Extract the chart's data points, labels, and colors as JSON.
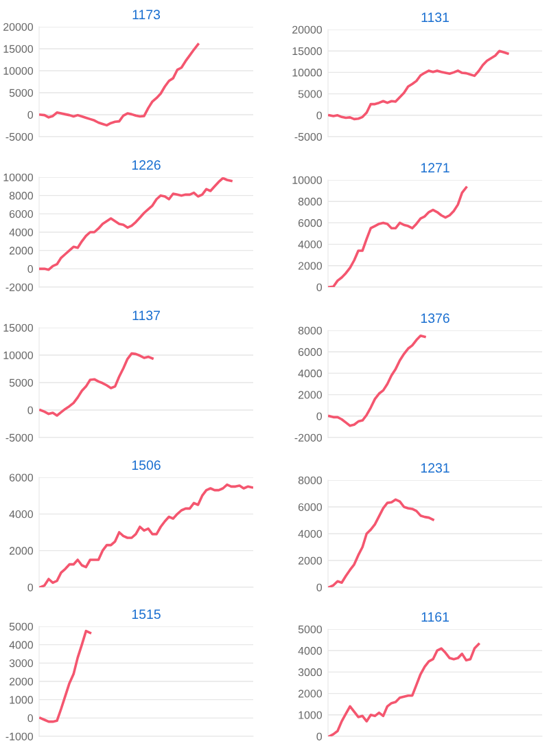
{
  "chart_data": [
    {
      "type": "line",
      "title": "1173",
      "ylim": [
        -5000,
        20000
      ],
      "yticks": [
        -5000,
        0,
        5000,
        10000,
        15000,
        20000
      ],
      "grid": "y",
      "categories": [
        null,
        null,
        null,
        null,
        null,
        null,
        null,
        null,
        null,
        null,
        null,
        null,
        null,
        null,
        null,
        null,
        null,
        null,
        null,
        null,
        null,
        null,
        null,
        null,
        null,
        null,
        null,
        null,
        null,
        null,
        null,
        null,
        null,
        null,
        null,
        null,
        null,
        null,
        null,
        null,
        null,
        null,
        null,
        null,
        null,
        null,
        null,
        null,
        null,
        null,
        null,
        null
      ],
      "series": [
        {
          "color": "#f4566f",
          "values": [
            0,
            -100,
            -600,
            -300,
            500,
            300,
            100,
            -100,
            -400,
            -100,
            -400,
            -700,
            -1000,
            -1300,
            -1800,
            -2100,
            -2400,
            -1900,
            -1600,
            -1500,
            -200,
            300,
            100,
            -200,
            -400,
            -300,
            1500,
            3000,
            3800,
            4800,
            6400,
            7700,
            8300,
            10200,
            10700,
            12200,
            13500,
            14800,
            16000,
            null,
            null,
            null,
            null,
            null,
            null,
            null,
            null,
            null,
            null,
            null,
            null,
            null
          ]
        }
      ]
    },
    {
      "type": "line",
      "title": "1131",
      "ylim": [
        -5000,
        20000
      ],
      "yticks": [
        -5000,
        0,
        5000,
        10000,
        15000,
        20000
      ],
      "grid": "y",
      "categories": [
        null,
        null,
        null,
        null,
        null,
        null,
        null,
        null,
        null,
        null,
        null,
        null,
        null,
        null,
        null,
        null,
        null,
        null,
        null,
        null,
        null,
        null,
        null,
        null,
        null,
        null,
        null,
        null,
        null,
        null,
        null,
        null,
        null,
        null,
        null,
        null,
        null,
        null,
        null,
        null,
        null,
        null,
        null,
        null,
        null,
        null,
        null,
        null,
        null,
        null,
        null,
        null
      ],
      "series": [
        {
          "color": "#f4566f",
          "values": [
            0,
            -200,
            0,
            -400,
            -600,
            -500,
            -900,
            -800,
            -400,
            600,
            2600,
            2600,
            2900,
            3300,
            2900,
            3300,
            3200,
            4200,
            5200,
            6700,
            7300,
            8000,
            9300,
            9900,
            10400,
            10100,
            10400,
            10100,
            9900,
            9700,
            10000,
            10400,
            9900,
            9800,
            9500,
            9200,
            10300,
            11700,
            12700,
            13300,
            13900,
            15000,
            14700,
            14400,
            null,
            null,
            null,
            null,
            null,
            null,
            null,
            null
          ]
        }
      ]
    },
    {
      "type": "line",
      "title": "1226",
      "ylim": [
        -2000,
        10000
      ],
      "yticks": [
        -2000,
        0,
        2000,
        4000,
        6000,
        8000,
        10000
      ],
      "grid": "y",
      "categories": [
        null,
        null,
        null,
        null,
        null,
        null,
        null,
        null,
        null,
        null,
        null,
        null,
        null,
        null,
        null,
        null,
        null,
        null,
        null,
        null,
        null,
        null,
        null,
        null,
        null,
        null,
        null,
        null,
        null,
        null,
        null,
        null,
        null,
        null,
        null,
        null,
        null,
        null,
        null,
        null,
        null,
        null,
        null,
        null,
        null,
        null,
        null,
        null,
        null,
        null,
        null,
        null
      ],
      "series": [
        {
          "color": "#f4566f",
          "values": [
            0,
            0,
            -100,
            300,
            500,
            1200,
            1600,
            2000,
            2400,
            2300,
            3000,
            3600,
            4000,
            4000,
            4400,
            4900,
            5200,
            5500,
            5200,
            4900,
            4800,
            4500,
            4700,
            5100,
            5600,
            6100,
            6500,
            6900,
            7600,
            8000,
            7900,
            7600,
            8200,
            8100,
            8000,
            8100,
            8100,
            8300,
            7900,
            8100,
            8700,
            8500,
            9000,
            9500,
            9900,
            9700,
            9600,
            null,
            null,
            null,
            null,
            null
          ]
        }
      ]
    },
    {
      "type": "line",
      "title": "1271",
      "ylim": [
        0,
        10000
      ],
      "yticks": [
        0,
        2000,
        4000,
        6000,
        8000,
        10000
      ],
      "grid": "y",
      "categories": [
        null,
        null,
        null,
        null,
        null,
        null,
        null,
        null,
        null,
        null,
        null,
        null,
        null,
        null,
        null,
        null,
        null,
        null,
        null,
        null,
        null,
        null,
        null,
        null,
        null,
        null,
        null,
        null,
        null,
        null,
        null,
        null,
        null,
        null,
        null,
        null,
        null,
        null,
        null,
        null,
        null,
        null,
        null,
        null,
        null,
        null,
        null,
        null,
        null,
        null,
        null,
        null
      ],
      "series": [
        {
          "color": "#f4566f",
          "values": [
            0,
            50,
            600,
            900,
            1300,
            1800,
            2500,
            3400,
            3400,
            4500,
            5500,
            5700,
            5900,
            6000,
            5900,
            5500,
            5500,
            6000,
            5800,
            5700,
            5500,
            5900,
            6400,
            6600,
            7000,
            7200,
            7000,
            6700,
            6500,
            6700,
            7100,
            7700,
            8800,
            9300,
            null,
            null,
            null,
            null,
            null,
            null,
            null,
            null,
            null,
            null,
            null,
            null,
            null,
            null,
            null,
            null,
            null,
            null
          ]
        }
      ]
    },
    {
      "type": "line",
      "title": "1137",
      "ylim": [
        -5000,
        15000
      ],
      "yticks": [
        -5000,
        0,
        5000,
        10000,
        15000
      ],
      "grid": "y",
      "categories": [
        null,
        null,
        null,
        null,
        null,
        null,
        null,
        null,
        null,
        null,
        null,
        null,
        null,
        null,
        null,
        null,
        null,
        null,
        null,
        null,
        null,
        null,
        null,
        null,
        null,
        null,
        null,
        null,
        null,
        null,
        null,
        null,
        null,
        null,
        null,
        null,
        null,
        null,
        null,
        null,
        null,
        null,
        null,
        null,
        null,
        null,
        null,
        null,
        null,
        null,
        null,
        null
      ],
      "series": [
        {
          "color": "#f4566f",
          "values": [
            0,
            -300,
            -700,
            -500,
            -1000,
            -400,
            200,
            700,
            1300,
            2300,
            3500,
            4300,
            5500,
            5600,
            5200,
            4900,
            4500,
            4000,
            4300,
            6100,
            7600,
            9300,
            10300,
            10200,
            9900,
            9500,
            9700,
            9400,
            null,
            null,
            null,
            null,
            null,
            null,
            null,
            null,
            null,
            null,
            null,
            null,
            null,
            null,
            null,
            null,
            null,
            null,
            null,
            null,
            null,
            null,
            null,
            null
          ]
        }
      ]
    },
    {
      "type": "line",
      "title": "1376",
      "ylim": [
        -2000,
        8000
      ],
      "yticks": [
        -2000,
        0,
        2000,
        4000,
        6000,
        8000
      ],
      "grid": "y",
      "categories": [
        null,
        null,
        null,
        null,
        null,
        null,
        null,
        null,
        null,
        null,
        null,
        null,
        null,
        null,
        null,
        null,
        null,
        null,
        null,
        null,
        null,
        null,
        null,
        null,
        null,
        null,
        null,
        null,
        null,
        null,
        null,
        null,
        null,
        null,
        null,
        null,
        null,
        null,
        null,
        null,
        null,
        null,
        null,
        null,
        null,
        null,
        null,
        null,
        null,
        null,
        null,
        null
      ],
      "series": [
        {
          "color": "#f4566f",
          "values": [
            0,
            -100,
            -100,
            -300,
            -600,
            -900,
            -800,
            -500,
            -400,
            100,
            800,
            1600,
            2100,
            2400,
            3000,
            3800,
            4400,
            5200,
            5800,
            6300,
            6600,
            7100,
            7500,
            7400,
            null,
            null,
            null,
            null,
            null,
            null,
            null,
            null,
            null,
            null,
            null,
            null,
            null,
            null,
            null,
            null,
            null,
            null,
            null,
            null,
            null,
            null,
            null,
            null,
            null,
            null,
            null,
            null
          ]
        }
      ]
    },
    {
      "type": "line",
      "title": "1506",
      "ylim": [
        0,
        6000
      ],
      "yticks": [
        0,
        2000,
        4000,
        6000
      ],
      "grid": "y",
      "categories": [
        null,
        null,
        null,
        null,
        null,
        null,
        null,
        null,
        null,
        null,
        null,
        null,
        null,
        null,
        null,
        null,
        null,
        null,
        null,
        null,
        null,
        null,
        null,
        null,
        null,
        null,
        null,
        null,
        null,
        null,
        null,
        null,
        null,
        null,
        null,
        null,
        null,
        null,
        null,
        null,
        null,
        null,
        null,
        null,
        null,
        null,
        null,
        null,
        null,
        null,
        null,
        null
      ],
      "series": [
        {
          "color": "#f4566f",
          "values": [
            0,
            100,
            450,
            250,
            350,
            800,
            1000,
            1250,
            1250,
            1500,
            1200,
            1100,
            1500,
            1500,
            1500,
            2000,
            2300,
            2300,
            2500,
            3000,
            2800,
            2700,
            2700,
            2900,
            3300,
            3100,
            3200,
            2900,
            2900,
            3300,
            3600,
            3850,
            3750,
            4000,
            4200,
            4300,
            4300,
            4600,
            4500,
            5000,
            5300,
            5400,
            5300,
            5300,
            5400,
            5600,
            5500,
            5500,
            5550,
            5400,
            5500,
            5450
          ]
        }
      ]
    },
    {
      "type": "line",
      "title": "1231",
      "ylim": [
        0,
        8000
      ],
      "yticks": [
        0,
        2000,
        4000,
        6000,
        8000
      ],
      "grid": "y",
      "categories": [
        null,
        null,
        null,
        null,
        null,
        null,
        null,
        null,
        null,
        null,
        null,
        null,
        null,
        null,
        null,
        null,
        null,
        null,
        null,
        null,
        null,
        null,
        null,
        null,
        null,
        null,
        null,
        null,
        null,
        null,
        null,
        null,
        null,
        null,
        null,
        null,
        null,
        null,
        null,
        null,
        null,
        null,
        null,
        null,
        null,
        null,
        null,
        null,
        null,
        null,
        null,
        null
      ],
      "series": [
        {
          "color": "#f4566f",
          "values": [
            0,
            150,
            450,
            350,
            850,
            1300,
            1700,
            2400,
            3000,
            4000,
            4300,
            4700,
            5300,
            5900,
            6300,
            6350,
            6550,
            6400,
            6000,
            5900,
            5850,
            5700,
            5350,
            5250,
            5200,
            5050,
            null,
            null,
            null,
            null,
            null,
            null,
            null,
            null,
            null,
            null,
            null,
            null,
            null,
            null,
            null,
            null,
            null,
            null,
            null,
            null,
            null,
            null,
            null,
            null,
            null,
            null
          ]
        }
      ]
    },
    {
      "type": "line",
      "title": "1515",
      "ylim": [
        -1000,
        5000
      ],
      "yticks": [
        -1000,
        0,
        1000,
        2000,
        3000,
        4000,
        5000
      ],
      "grid": "y",
      "categories": [
        null,
        null,
        null,
        null,
        null,
        null,
        null,
        null,
        null,
        null,
        null,
        null,
        null,
        null,
        null,
        null,
        null,
        null,
        null,
        null,
        null,
        null,
        null,
        null,
        null,
        null,
        null,
        null,
        null,
        null,
        null,
        null,
        null,
        null,
        null,
        null,
        null,
        null,
        null,
        null,
        null,
        null,
        null,
        null,
        null,
        null,
        null,
        null,
        null,
        null,
        null,
        null
      ],
      "series": [
        {
          "color": "#f4566f",
          "values": [
            0,
            -100,
            -200,
            -200,
            -150,
            500,
            1200,
            1900,
            2400,
            3300,
            4000,
            4750,
            4650,
            null,
            null,
            null,
            null,
            null,
            null,
            null,
            null,
            null,
            null,
            null,
            null,
            null,
            null,
            null,
            null,
            null,
            null,
            null,
            null,
            null,
            null,
            null,
            null,
            null,
            null,
            null,
            null,
            null,
            null,
            null,
            null,
            null,
            null,
            null,
            null,
            null,
            null,
            null
          ]
        }
      ]
    },
    {
      "type": "line",
      "title": "1161",
      "ylim": [
        0,
        5000
      ],
      "yticks": [
        0,
        1000,
        2000,
        3000,
        4000,
        5000
      ],
      "grid": "y",
      "categories": [
        null,
        null,
        null,
        null,
        null,
        null,
        null,
        null,
        null,
        null,
        null,
        null,
        null,
        null,
        null,
        null,
        null,
        null,
        null,
        null,
        null,
        null,
        null,
        null,
        null,
        null,
        null,
        null,
        null,
        null,
        null,
        null,
        null,
        null,
        null,
        null,
        null,
        null,
        null,
        null,
        null,
        null,
        null,
        null,
        null,
        null,
        null,
        null,
        null,
        null,
        null,
        null
      ],
      "series": [
        {
          "color": "#f4566f",
          "values": [
            0,
            100,
            250,
            700,
            1050,
            1400,
            1150,
            900,
            950,
            700,
            1000,
            950,
            1100,
            950,
            1400,
            1550,
            1600,
            1800,
            1850,
            1900,
            1900,
            2400,
            2900,
            3250,
            3500,
            3600,
            4000,
            4100,
            3900,
            3650,
            3600,
            3650,
            3850,
            3550,
            3600,
            4100,
            4300,
            null,
            null,
            null,
            null,
            null,
            null,
            null,
            null,
            null,
            null,
            null,
            null,
            null,
            null,
            null
          ]
        }
      ]
    }
  ]
}
